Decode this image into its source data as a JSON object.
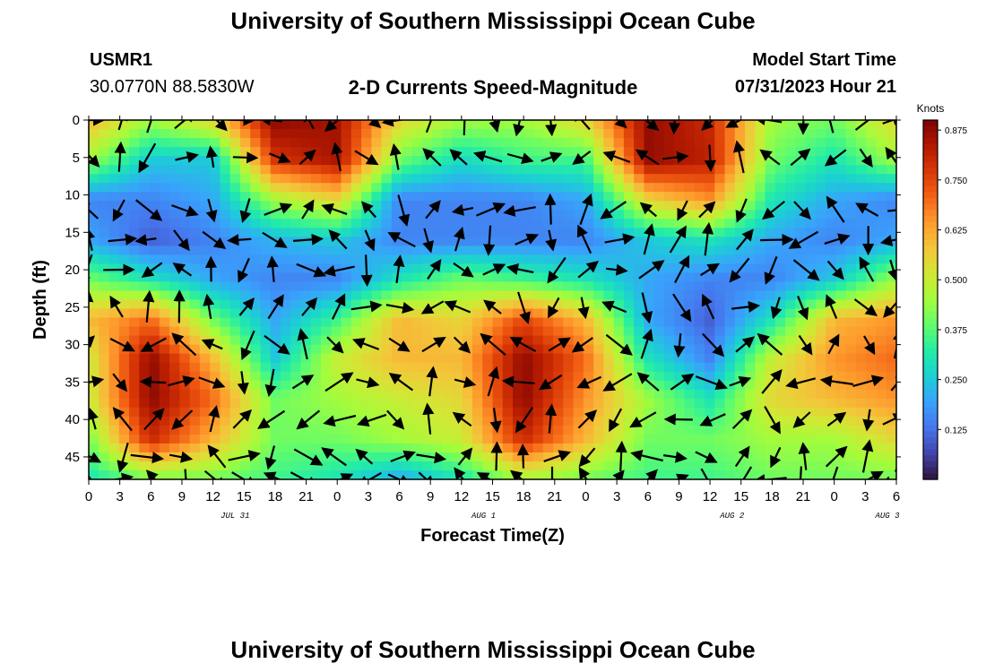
{
  "page": {
    "title": "University of Southern Mississippi Ocean Cube",
    "title_repeat": "University of Southern Mississippi Ocean Cube"
  },
  "header": {
    "station": "USMR1",
    "coords": "30.0770N  88.5830W",
    "subtitle": "2-D Currents Speed-Magnitude",
    "model_label": "Model Start Time",
    "model_time": "07/31/2023 Hour 21"
  },
  "chart_data": {
    "type": "heatmap",
    "title": "2-D Currents Speed-Magnitude",
    "xlabel": "Forecast Time(Z)",
    "ylabel": "Depth (ft)",
    "x_tick_labels": [
      "0",
      "3",
      "6",
      "9",
      "12",
      "15",
      "18",
      "21",
      "0",
      "3",
      "6",
      "9",
      "12",
      "15",
      "18",
      "21",
      "0",
      "3",
      "6",
      "9",
      "12",
      "15",
      "18",
      "21",
      "0",
      "3",
      "6"
    ],
    "date_labels": [
      "JUL 31",
      "AUG 1",
      "AUG 2",
      "AUG 3"
    ],
    "date_label_tick_index": [
      5,
      13,
      21,
      26
    ],
    "y_tick_labels": [
      "0",
      "5",
      "10",
      "15",
      "20",
      "25",
      "30",
      "35",
      "40",
      "45"
    ],
    "ylim": [
      48,
      0
    ],
    "colorbar": {
      "label": "Knots",
      "ticks": [
        "0.125",
        "0.250",
        "0.375",
        "0.500",
        "0.625",
        "0.750",
        "0.875"
      ],
      "range": [
        0.0,
        0.9
      ]
    },
    "colormap": [
      "#30123b",
      "#4145ab",
      "#4675ed",
      "#39a2fc",
      "#1bcfd4",
      "#24eca6",
      "#61fc6c",
      "#a4fc3b",
      "#d1e834",
      "#f3c63a",
      "#fe9b2d",
      "#f36315",
      "#d93806",
      "#b11901",
      "#7a0403"
    ],
    "speed_grid_rows_depth": [
      0,
      5.3,
      10.7,
      16,
      21.3,
      26.7,
      32,
      37.3,
      42.7,
      48
    ],
    "speed_grid_cols_hour": [
      0,
      6,
      12,
      18,
      24,
      30,
      36,
      42,
      48,
      54,
      60,
      66,
      72,
      78
    ],
    "speed_grid": [
      [
        0.6,
        0.45,
        0.55,
        0.88,
        0.85,
        0.55,
        0.45,
        0.45,
        0.55,
        0.87,
        0.8,
        0.45,
        0.4,
        0.55
      ],
      [
        0.45,
        0.25,
        0.25,
        0.78,
        0.85,
        0.4,
        0.28,
        0.35,
        0.35,
        0.87,
        0.82,
        0.4,
        0.3,
        0.45
      ],
      [
        0.15,
        0.15,
        0.2,
        0.45,
        0.55,
        0.15,
        0.15,
        0.15,
        0.2,
        0.55,
        0.65,
        0.3,
        0.2,
        0.15
      ],
      [
        0.2,
        0.1,
        0.15,
        0.22,
        0.25,
        0.15,
        0.15,
        0.15,
        0.15,
        0.25,
        0.3,
        0.2,
        0.15,
        0.2
      ],
      [
        0.4,
        0.3,
        0.2,
        0.15,
        0.15,
        0.3,
        0.4,
        0.35,
        0.3,
        0.2,
        0.15,
        0.15,
        0.25,
        0.45
      ],
      [
        0.6,
        0.7,
        0.4,
        0.2,
        0.35,
        0.6,
        0.55,
        0.75,
        0.6,
        0.2,
        0.1,
        0.3,
        0.6,
        0.65
      ],
      [
        0.5,
        0.88,
        0.6,
        0.25,
        0.5,
        0.6,
        0.6,
        0.88,
        0.7,
        0.3,
        0.15,
        0.5,
        0.65,
        0.7
      ],
      [
        0.5,
        0.88,
        0.7,
        0.4,
        0.45,
        0.5,
        0.55,
        0.88,
        0.65,
        0.45,
        0.3,
        0.55,
        0.6,
        0.65
      ],
      [
        0.4,
        0.8,
        0.6,
        0.4,
        0.4,
        0.45,
        0.5,
        0.8,
        0.6,
        0.4,
        0.4,
        0.45,
        0.45,
        0.55
      ],
      [
        0.3,
        0.4,
        0.4,
        0.35,
        0.3,
        0.2,
        0.3,
        0.45,
        0.4,
        0.35,
        0.35,
        0.4,
        0.4,
        0.4
      ]
    ],
    "vectors_depth_ft": [
      0,
      5,
      12,
      16,
      20,
      25,
      30,
      35,
      40,
      45,
      48
    ],
    "vectors_hour_step": 3
  }
}
